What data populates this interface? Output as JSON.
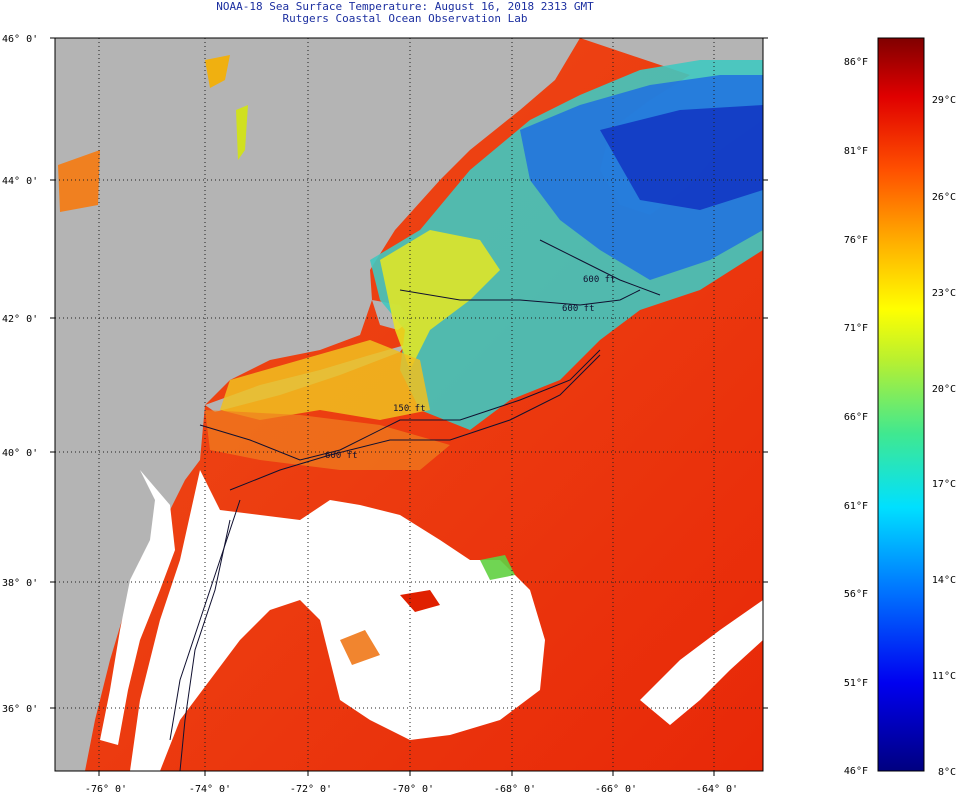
{
  "title_line1": "NOAA-18 Sea Surface Temperature:  August 16, 2018 2313 GMT",
  "title_line2": "Rutgers Coastal Ocean Observation Lab",
  "lat_labels": [
    "46° 0'",
    "44° 0'",
    "42° 0'",
    "40° 0'",
    "38° 0'",
    "36° 0'"
  ],
  "lon_labels": [
    "-76° 0'",
    "-74° 0'",
    "-72° 0'",
    "-70° 0'",
    "-68° 0'",
    "-66° 0'",
    "-64° 0'"
  ],
  "contours": {
    "label_150": "150 ft",
    "label_600a": "600 ft",
    "label_600b": "600 ft",
    "label_600c": "600 ft"
  },
  "colorbar": {
    "fahrenheit": [
      "86°F",
      "81°F",
      "76°F",
      "71°F",
      "66°F",
      "61°F",
      "56°F",
      "51°F",
      "46°F"
    ],
    "celsius": [
      "29°C",
      "26°C",
      "23°C",
      "20°C",
      "17°C",
      "14°C",
      "11°C",
      "8°C"
    ],
    "min_c": 8,
    "max_c": 30.5
  },
  "colors": {
    "land": "#b4b4b4",
    "cloud": "#ffffff",
    "warm": "#f03c10",
    "hot": "#e02000",
    "cold": "#1040d0",
    "title": "#1c2fa0"
  }
}
